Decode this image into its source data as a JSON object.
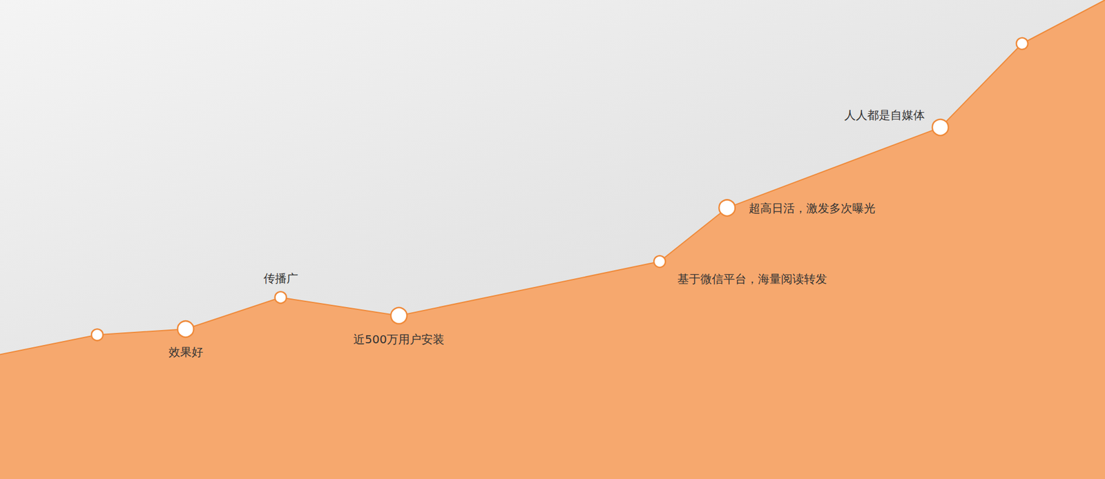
{
  "chart_data": {
    "type": "line",
    "x": [
      0,
      8.8,
      16.8,
      25.4,
      36.1,
      59.7,
      65.8,
      85.1,
      92.5,
      100
    ],
    "values": [
      26.0,
      30.1,
      31.3,
      37.9,
      34.1,
      45.4,
      56.6,
      73.4,
      90.9,
      100
    ],
    "annotations": [
      null,
      null,
      "效果好",
      "传播广",
      "近500万用户安装",
      "基于微信平台，海量阅读转发",
      "超高日活，激发多次曝光",
      "人人都是自媒体",
      null,
      null
    ],
    "color": "#f6a86e",
    "xlim": [
      0,
      100
    ],
    "ylim": [
      0,
      100
    ],
    "xticks": [],
    "yticks": [],
    "grid": false,
    "tick_labels": false
  }
}
